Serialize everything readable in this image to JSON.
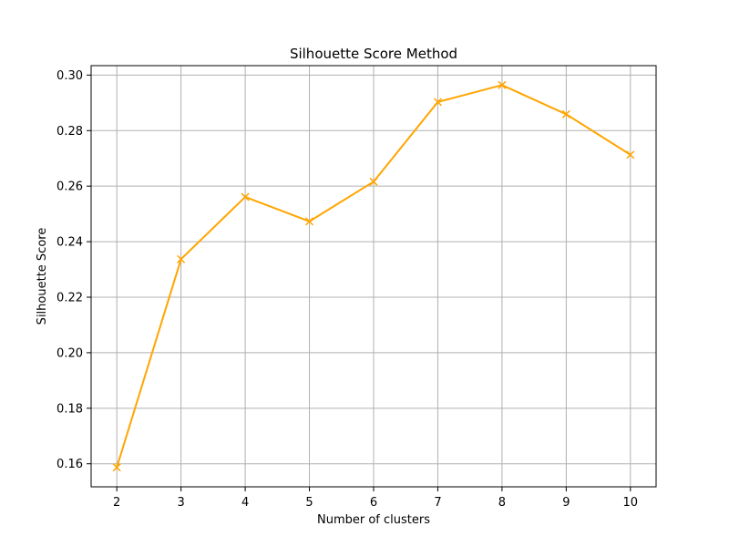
{
  "chart_data": {
    "type": "line",
    "title": "Silhouette Score Method",
    "xlabel": "Number of clusters",
    "ylabel": "Silhouette Score",
    "x": [
      2,
      3,
      4,
      5,
      6,
      7,
      8,
      9,
      10
    ],
    "series": [
      {
        "values": [
          0.1587,
          0.2337,
          0.2561,
          0.2473,
          0.2616,
          0.2903,
          0.2964,
          0.2859,
          0.2713
        ],
        "color": "#FFA500",
        "marker": "x"
      }
    ],
    "xticks": [
      "2",
      "3",
      "4",
      "5",
      "6",
      "7",
      "8",
      "9",
      "10"
    ],
    "yticks": [
      "0.16",
      "0.18",
      "0.20",
      "0.22",
      "0.24",
      "0.26",
      "0.28",
      "0.30"
    ],
    "xlim": [
      1.6,
      10.4
    ],
    "ylim": [
      0.1517,
      0.3034
    ],
    "grid": true
  }
}
